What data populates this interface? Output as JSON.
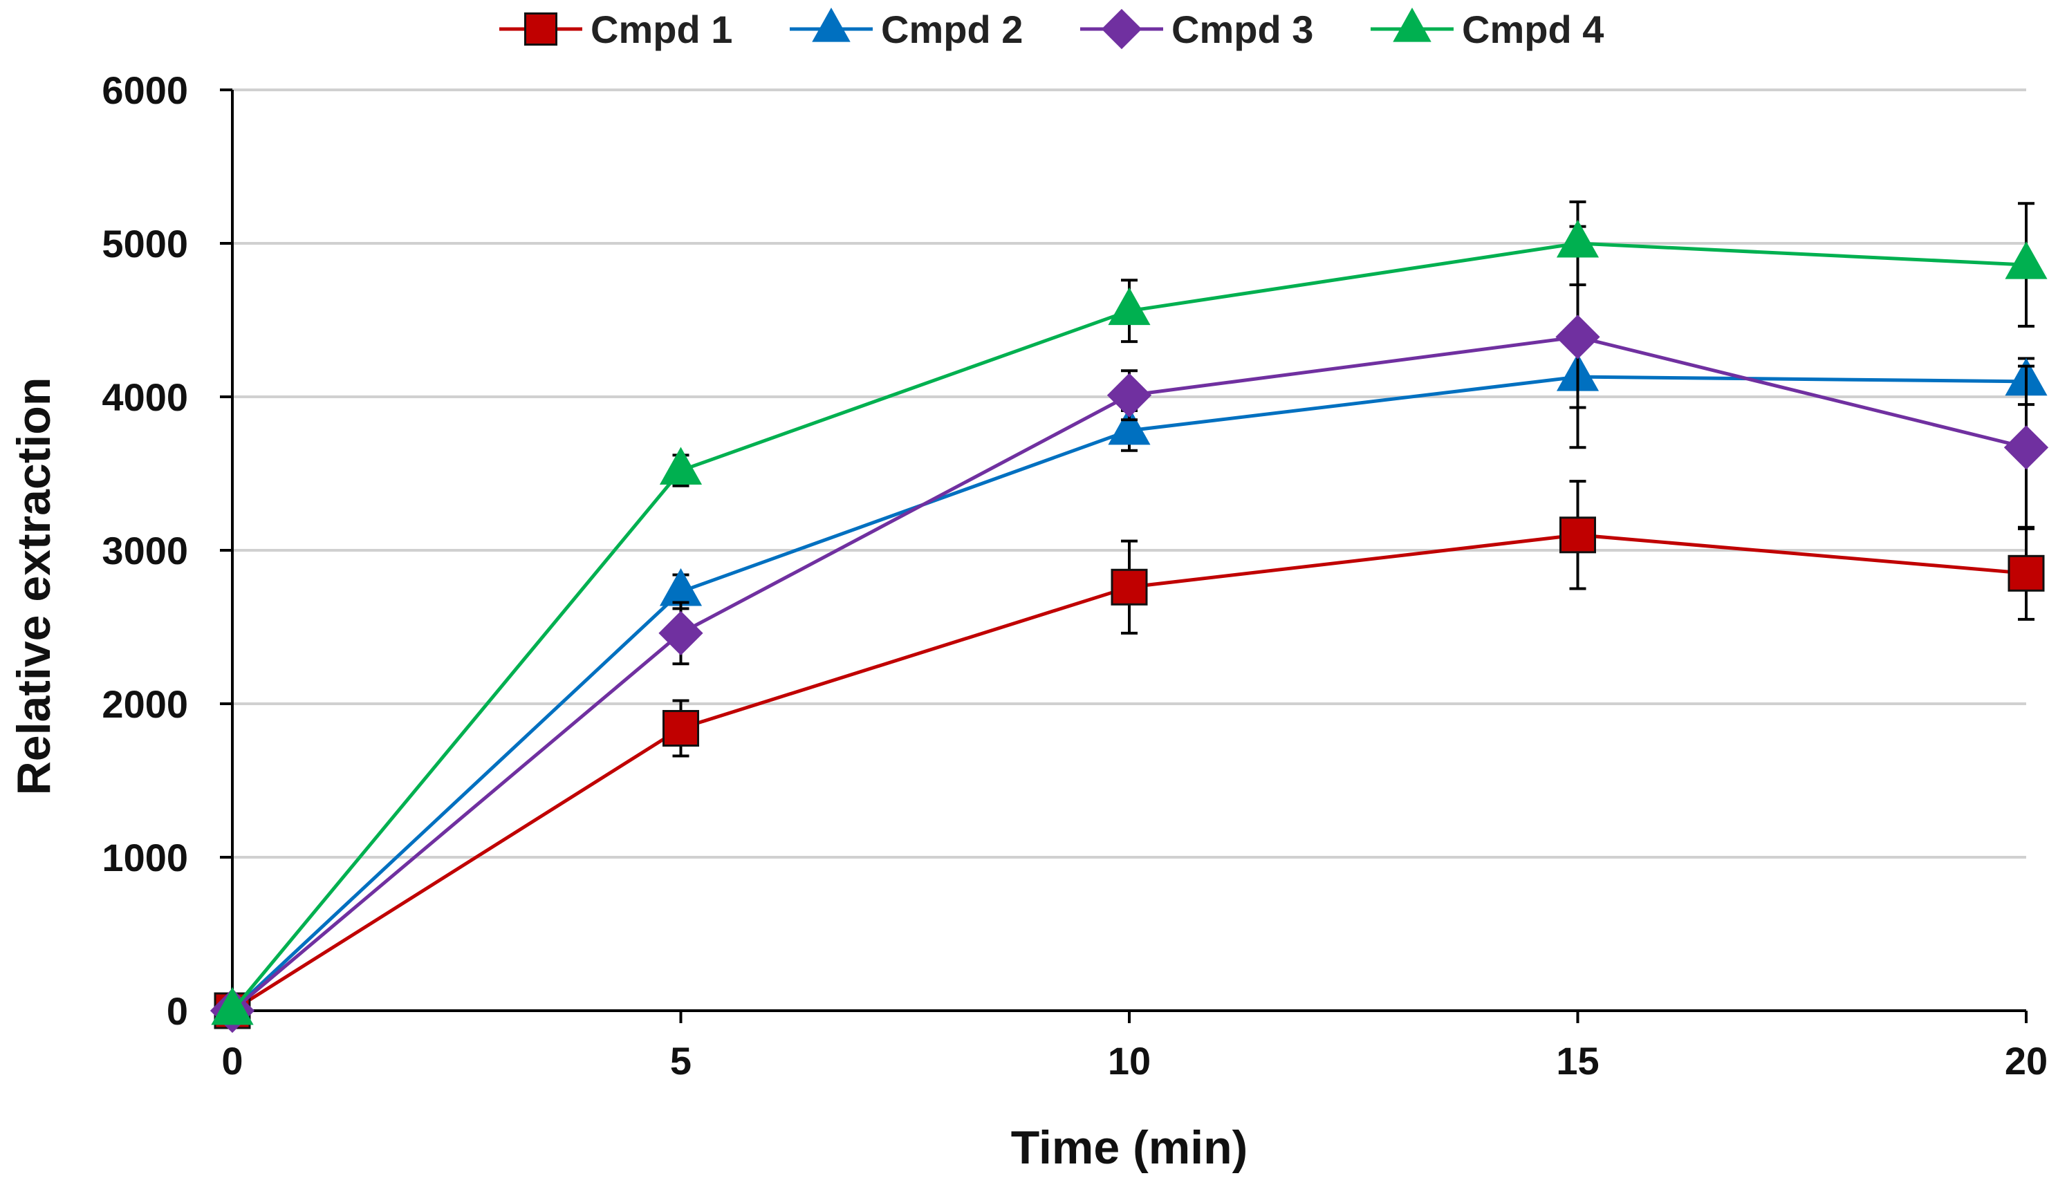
{
  "chart_data": {
    "type": "line",
    "title": "",
    "xlabel": "Time (min)",
    "ylabel": "Relative extraction",
    "x": [
      0,
      5,
      10,
      15,
      20
    ],
    "xlim": [
      0,
      20
    ],
    "ylim": [
      0,
      6000
    ],
    "xticks": [
      0,
      5,
      10,
      15,
      20
    ],
    "yticks": [
      0,
      1000,
      2000,
      3000,
      4000,
      5000,
      6000
    ],
    "grid": true,
    "legend_position": "top",
    "series": [
      {
        "name": "Cmpd 1",
        "color": "#c00000",
        "marker": "square",
        "values": [
          0,
          1840,
          2760,
          3100,
          2850
        ],
        "errors": [
          0,
          180,
          300,
          350,
          300
        ]
      },
      {
        "name": "Cmpd 2",
        "color": "#0070c0",
        "marker": "triangle",
        "values": [
          0,
          2730,
          3780,
          4130,
          4100
        ],
        "errors": [
          0,
          110,
          130,
          200,
          150
        ]
      },
      {
        "name": "Cmpd 3",
        "color": "#7030a0",
        "marker": "diamond",
        "values": [
          0,
          2460,
          4010,
          4390,
          3670
        ],
        "errors": [
          0,
          200,
          160,
          720,
          530
        ]
      },
      {
        "name": "Cmpd 4",
        "color": "#00b050",
        "marker": "triangle",
        "values": [
          0,
          3520,
          4560,
          5000,
          4860
        ],
        "errors": [
          0,
          100,
          200,
          270,
          400
        ]
      }
    ]
  }
}
